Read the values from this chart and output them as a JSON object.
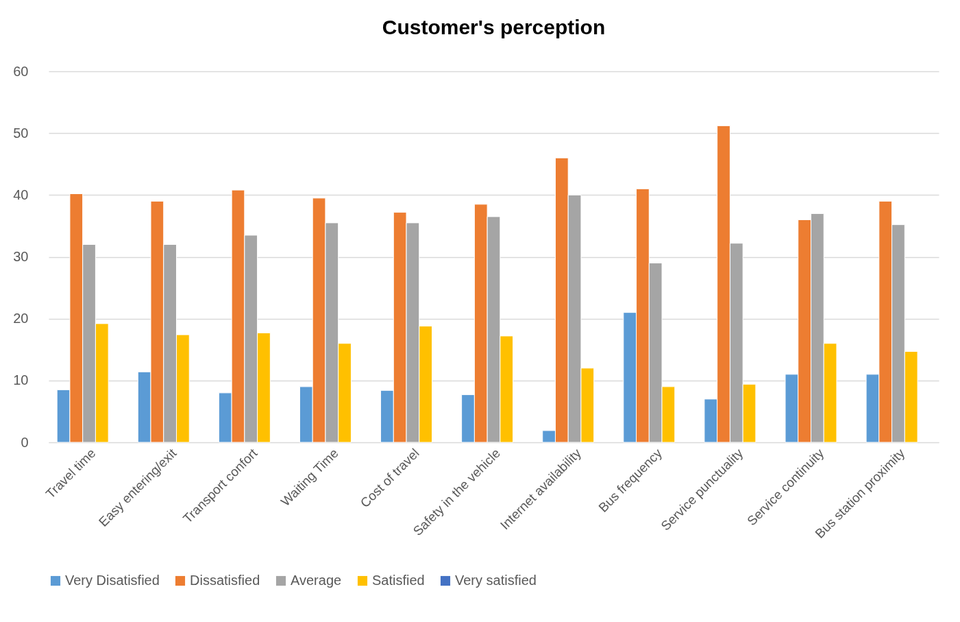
{
  "chart_data": {
    "type": "bar",
    "title": "Customer's perception",
    "categories": [
      "Travel time",
      "Easy entering/exit",
      "Transport confort",
      "Waiting Time",
      "Cost of travel",
      "Safety in the vehicle",
      "Internet availability",
      "Bus frequency",
      "Service punctuality",
      "Service continuity",
      "Bus station proximity"
    ],
    "series": [
      {
        "name": "Very Disatisfied",
        "color": "#5b9bd5",
        "values": [
          8.5,
          11.4,
          8,
          9,
          8.4,
          7.7,
          1.9,
          21,
          7,
          11,
          11
        ]
      },
      {
        "name": "Dissatisfied",
        "color": "#ed7d31",
        "values": [
          40.2,
          39,
          40.8,
          39.5,
          37.2,
          38.5,
          46,
          41,
          51.2,
          36,
          39
        ]
      },
      {
        "name": "Average",
        "color": "#a5a5a5",
        "values": [
          32,
          32,
          33.5,
          35.5,
          35.5,
          36.5,
          40,
          29,
          32.2,
          37,
          35.2
        ]
      },
      {
        "name": "Satisfied",
        "color": "#ffc000",
        "values": [
          19.2,
          17.4,
          17.7,
          16,
          18.8,
          17.2,
          12,
          9,
          9.4,
          16,
          14.7
        ]
      },
      {
        "name": "Very satisfied",
        "color": "#4472c4",
        "values": [
          null,
          null,
          null,
          null,
          null,
          null,
          null,
          null,
          null,
          null,
          null
        ]
      }
    ],
    "ylim": [
      0,
      60
    ],
    "yticks": [
      0,
      10,
      20,
      30,
      40,
      50,
      60
    ],
    "grid": "y",
    "legend": "bottom"
  }
}
